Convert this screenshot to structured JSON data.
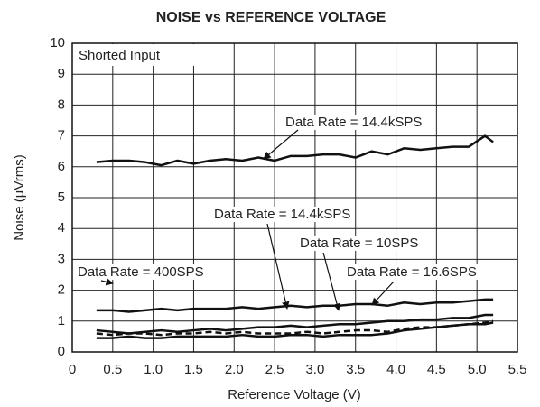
{
  "chart_data": {
    "type": "line",
    "title": "NOISE vs REFERENCE VOLTAGE",
    "xlabel": "Reference Voltage (V)",
    "ylabel": "Noise (µVrms)",
    "annotation": "Shorted Input",
    "x": [
      0.3,
      0.5,
      0.7,
      0.9,
      1.1,
      1.3,
      1.5,
      1.7,
      1.9,
      2.1,
      2.3,
      2.5,
      2.7,
      2.9,
      3.1,
      3.3,
      3.5,
      3.7,
      3.9,
      4.1,
      4.3,
      4.5,
      4.7,
      4.9,
      5.1,
      5.2
    ],
    "series": [
      {
        "name": "Data Rate = 14.4kSPS",
        "color": "#111111",
        "dashed": false,
        "values": [
          6.15,
          6.2,
          6.2,
          6.15,
          6.05,
          6.2,
          6.1,
          6.2,
          6.25,
          6.2,
          6.3,
          6.2,
          6.35,
          6.35,
          6.4,
          6.4,
          6.3,
          6.5,
          6.4,
          6.6,
          6.55,
          6.6,
          6.65,
          6.65,
          7.0,
          6.8
        ]
      },
      {
        "name": "Data Rate = 400SPS",
        "color": "#111111",
        "dashed": false,
        "values": [
          1.35,
          1.35,
          1.3,
          1.35,
          1.4,
          1.35,
          1.4,
          1.4,
          1.4,
          1.45,
          1.4,
          1.45,
          1.5,
          1.45,
          1.5,
          1.5,
          1.55,
          1.55,
          1.5,
          1.6,
          1.55,
          1.6,
          1.6,
          1.65,
          1.7,
          1.7
        ]
      },
      {
        "name": "Data Rate = 14.4kSPS",
        "color": "#111111",
        "dashed": false,
        "values": [
          0.7,
          0.65,
          0.6,
          0.65,
          0.7,
          0.65,
          0.7,
          0.75,
          0.7,
          0.75,
          0.8,
          0.8,
          0.85,
          0.8,
          0.85,
          0.9,
          0.9,
          0.95,
          1.0,
          1.0,
          1.05,
          1.05,
          1.1,
          1.1,
          1.2,
          1.2
        ]
      },
      {
        "name": "Data Rate = 10SPS",
        "color": "#111111",
        "dashed": false,
        "values": [
          0.45,
          0.45,
          0.5,
          0.45,
          0.45,
          0.5,
          0.5,
          0.5,
          0.5,
          0.55,
          0.5,
          0.5,
          0.55,
          0.55,
          0.5,
          0.55,
          0.55,
          0.55,
          0.6,
          0.7,
          0.75,
          0.8,
          0.85,
          0.9,
          0.9,
          0.95
        ]
      },
      {
        "name": "Data Rate = 16.6SPS",
        "color": "#111111",
        "dashed": true,
        "values": [
          0.6,
          0.55,
          0.6,
          0.6,
          0.55,
          0.6,
          0.6,
          0.65,
          0.6,
          0.65,
          0.6,
          0.6,
          0.6,
          0.65,
          0.6,
          0.65,
          0.7,
          0.7,
          0.65,
          0.75,
          0.8,
          0.8,
          0.85,
          0.9,
          0.95,
          1.0
        ]
      }
    ],
    "xlim": [
      0,
      5.5
    ],
    "xticks": [
      0,
      0.5,
      {
        "value": 1,
        "label": "1.0"
      },
      1.5,
      {
        "value": 2,
        "label": "2.0"
      },
      2.5,
      {
        "value": 3,
        "label": "3.0"
      },
      3.5,
      {
        "value": 4,
        "label": "4.0"
      },
      4.5,
      {
        "value": 5,
        "label": "5.0"
      },
      5.5
    ],
    "ylim": [
      0,
      10
    ],
    "yticks": [
      0,
      1,
      2,
      3,
      4,
      5,
      6,
      7,
      8,
      9,
      10
    ],
    "grid": true
  }
}
